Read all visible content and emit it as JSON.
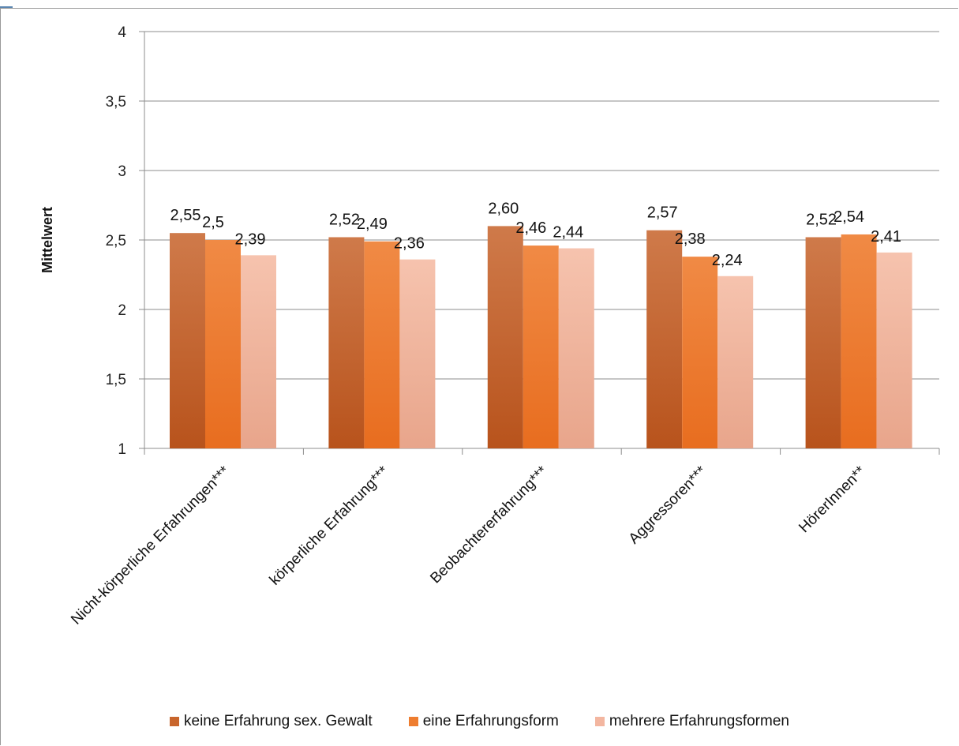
{
  "chart_data": {
    "type": "bar",
    "ylabel": "Mittelwert",
    "xlabel": "",
    "ylim": [
      1,
      4
    ],
    "yticks": [
      {
        "value": 1,
        "label": "1"
      },
      {
        "value": 1.5,
        "label": "1,5"
      },
      {
        "value": 2,
        "label": "2"
      },
      {
        "value": 2.5,
        "label": "2,5"
      },
      {
        "value": 3,
        "label": "3"
      },
      {
        "value": 3.5,
        "label": "3,5"
      },
      {
        "value": 4,
        "label": "4"
      }
    ],
    "grid": true,
    "legend_position": "bottom",
    "categories": [
      "Nicht-körperliche Erfahrungen***",
      "körperliche Erfahrung***",
      "Beobachtererfahrung***",
      "Aggressoren***",
      "HörerInnen**"
    ],
    "series": [
      {
        "name": "keine Erfahrung sex. Gewalt",
        "color": "#c8652c",
        "values": [
          2.55,
          2.52,
          2.6,
          2.57,
          2.52
        ],
        "labels": [
          "2,55",
          "2,52",
          "2,60",
          "2,57",
          "2,52"
        ]
      },
      {
        "name": "eine Erfahrungsform",
        "color": "#ee7d30",
        "values": [
          2.5,
          2.49,
          2.46,
          2.38,
          2.54
        ],
        "labels": [
          "2,5",
          "2,49",
          "2,46",
          "2,38",
          "2,54"
        ]
      },
      {
        "name": "mehrere Erfahrungsformen",
        "color": "#f3b6a0",
        "values": [
          2.39,
          2.36,
          2.44,
          2.24,
          2.41
        ],
        "labels": [
          "2,39",
          "2,36",
          "2,44",
          "2,24",
          "2,41"
        ]
      }
    ]
  }
}
